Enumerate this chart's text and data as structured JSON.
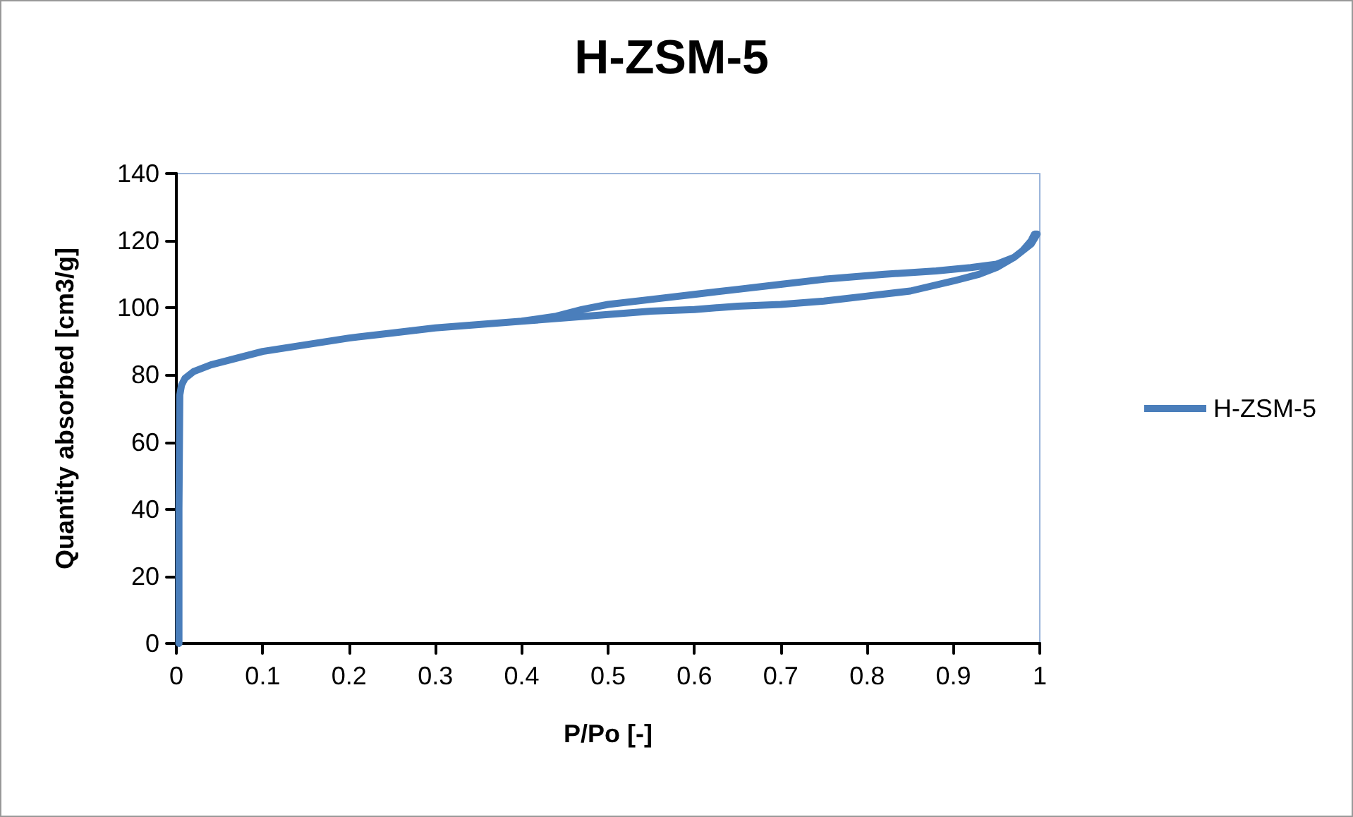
{
  "chart_data": {
    "type": "line",
    "title": "H-ZSM-5",
    "xlabel": "P/Po [-]",
    "ylabel": "Quantity absorbed [cm3/g]",
    "series": [
      {
        "name": "H-ZSM-5",
        "color": "#4a7ebb",
        "x": [
          0.003,
          0.003,
          0.004,
          0.006,
          0.01,
          0.02,
          0.04,
          0.07,
          0.1,
          0.15,
          0.2,
          0.25,
          0.3,
          0.35,
          0.4,
          0.45,
          0.5,
          0.55,
          0.6,
          0.65,
          0.7,
          0.75,
          0.8,
          0.85,
          0.9,
          0.93,
          0.95,
          0.97,
          0.98,
          0.99,
          0.994,
          0.997,
          0.99,
          0.97,
          0.95,
          0.92,
          0.88,
          0.82,
          0.75,
          0.7,
          0.65,
          0.6,
          0.55,
          0.5,
          0.47,
          0.44,
          0.4
        ],
        "values": [
          0,
          40,
          74,
          77,
          79,
          81,
          83,
          85,
          87,
          89,
          91,
          92.5,
          94,
          95,
          96,
          97,
          98,
          99,
          99.5,
          100.5,
          101,
          102,
          103.5,
          105,
          108,
          110,
          112,
          115,
          117,
          120,
          122,
          122,
          119,
          115,
          113,
          112,
          111,
          110,
          108.5,
          107,
          105.5,
          104,
          102.5,
          101,
          99.5,
          97.5,
          96
        ]
      }
    ],
    "xlim": [
      0,
      1
    ],
    "xticks": [
      0,
      0.1,
      0.2,
      0.3,
      0.4,
      0.5,
      0.6,
      0.7,
      0.8,
      0.9,
      1
    ],
    "ylim": [
      0,
      140
    ],
    "yticks": [
      0,
      20,
      40,
      60,
      80,
      100,
      120,
      140
    ],
    "grid": false,
    "legend": "right",
    "marker": "none",
    "line_style": "solid"
  }
}
